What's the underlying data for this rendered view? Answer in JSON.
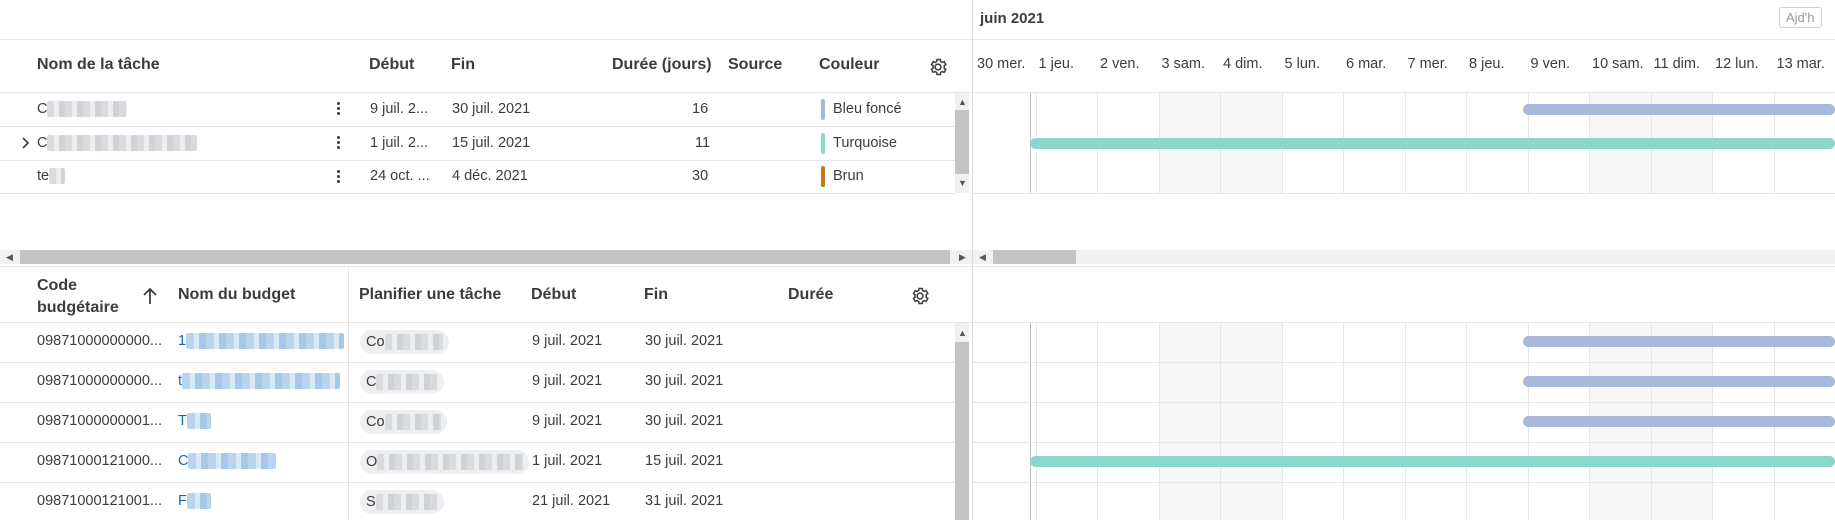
{
  "timeline": {
    "month_label": "juin 2021",
    "today_button": "Ajd'h",
    "days": [
      "30 mer.",
      "1 jeu.",
      "2 ven.",
      "3 sam.",
      "4 dim.",
      "5 lun.",
      "6 mar.",
      "7 mer.",
      "8 jeu.",
      "9 ven.",
      "10 sam.",
      "11 dim.",
      "12 lun.",
      "13 mar."
    ]
  },
  "tasks": {
    "columns": {
      "name": "Nom de la tâche",
      "start": "Début",
      "end": "Fin",
      "duration": "Durée (jours)",
      "source": "Source",
      "color": "Couleur"
    },
    "rows": [
      {
        "name_prefix": "C",
        "start": "9 juil. 2...",
        "end": "30 juil. 2021",
        "duration": "16",
        "source": "",
        "color_name": "Bleu foncé",
        "color": "#a8b9d9"
      },
      {
        "name_prefix": "C",
        "start": "1 juil. 2...",
        "end": "15 juil. 2021",
        "duration": "11",
        "source": "",
        "color_name": "Turquoise",
        "color": "#8dd6cb"
      },
      {
        "name_prefix": "te",
        "start": "24 oct. ...",
        "end": "4 déc. 2021",
        "duration": "30",
        "source": "",
        "color_name": "Brun",
        "color": "#c27a1f"
      }
    ]
  },
  "budget": {
    "columns": {
      "code_line1": "Code",
      "code_line2": "budgétaire",
      "name": "Nom du budget",
      "task": "Planifier une tâche",
      "start": "Début",
      "end": "Fin",
      "duration": "Durée"
    },
    "rows": [
      {
        "code": "09871000000000...",
        "name_prefix": "1",
        "task_prefix": "Co",
        "start": "9 juil. 2021",
        "end": "30 juil. 2021"
      },
      {
        "code": "09871000000000...",
        "name_prefix": "t",
        "task_prefix": "C",
        "start": "9 juil. 2021",
        "end": "30 juil. 2021"
      },
      {
        "code": "09871000000001...",
        "name_prefix": "T",
        "task_prefix": "Co",
        "start": "9 juil. 2021",
        "end": "30 juil. 2021"
      },
      {
        "code": "09871000121000...",
        "name_prefix": "C",
        "task_prefix": "O",
        "start": "1 juil. 2021",
        "end": "15 juil. 2021"
      },
      {
        "code": "09871000121001...",
        "name_prefix": "F",
        "task_prefix": "S",
        "start": "21 juil. 2021",
        "end": "31 juil. 2021"
      }
    ]
  },
  "colors": {
    "bar_blue": "#a8b9d9",
    "bar_teal": "#8dd6cb",
    "link": "#0b6bb5",
    "grid": "#e6e6e6"
  }
}
